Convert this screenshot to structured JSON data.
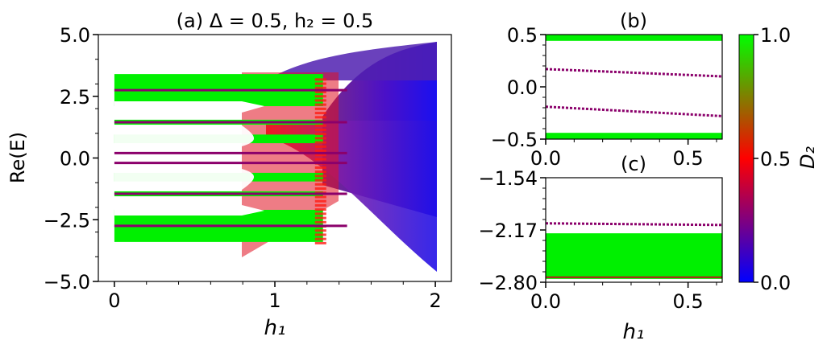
{
  "chart_data": [
    {
      "panel": "a",
      "type": "scatter",
      "title": "(a) Δ = 0.5, h₂ = 0.5",
      "xlabel": "h₁",
      "ylabel": "Re(E)",
      "xlim": [
        -0.1,
        2.1
      ],
      "ylim": [
        -5.0,
        5.0
      ],
      "xticks": [
        0,
        1,
        2
      ],
      "xtick_labels": [
        "0",
        "1",
        "2"
      ],
      "yticks": [
        5.0,
        2.5,
        0.0,
        -2.5,
        -5.0
      ],
      "ytick_labels": [
        "5.0",
        "2.5",
        "0.0",
        "−2.5",
        "−5.0"
      ],
      "green_bands": [
        [
          2.1,
          3.4
        ],
        [
          1.35,
          1.55
        ],
        [
          0.6,
          0.95
        ],
        [
          -0.95,
          -0.6
        ],
        [
          -1.55,
          -1.35
        ],
        [
          -3.4,
          -2.1
        ]
      ],
      "purple_levels": [
        0.2,
        -0.2,
        1.45,
        -1.45,
        2.75,
        -2.75
      ],
      "colormap_note": "color encodes D2 (green = extended, red = critical, blue = localized)"
    },
    {
      "panel": "b",
      "type": "scatter",
      "title": "(b)",
      "xlim": [
        0.0,
        0.62
      ],
      "ylim": [
        -0.5,
        0.5
      ],
      "xticks": [
        0.0,
        0.5
      ],
      "xtick_labels": [
        "0.0",
        "0.5"
      ],
      "yticks": [
        0.5,
        0.0,
        -0.5
      ],
      "ytick_labels": [
        "0.5",
        "0.0",
        "−0.5"
      ],
      "series": [
        {
          "color": "#8b006b",
          "x": [
            0.0,
            0.62
          ],
          "y": [
            0.17,
            0.1
          ]
        },
        {
          "color": "#8b006b",
          "x": [
            0.0,
            0.62
          ],
          "y": [
            -0.19,
            -0.28
          ]
        }
      ],
      "green_bands": [
        [
          0.44,
          0.5
        ],
        [
          -0.5,
          -0.44
        ]
      ]
    },
    {
      "panel": "c",
      "type": "scatter",
      "title": "(c)",
      "xlabel": "h₁",
      "xlim": [
        0.0,
        0.62
      ],
      "ylim": [
        -2.8,
        -1.54
      ],
      "xticks": [
        0.0,
        0.5
      ],
      "xtick_labels": [
        "0.0",
        "0.5"
      ],
      "yticks": [
        -1.54,
        -2.17,
        -2.8
      ],
      "ytick_labels": [
        "−1.54",
        "−2.17",
        "−2.80"
      ],
      "series": [
        {
          "color": "#8b006b",
          "x": [
            0.0,
            0.62
          ],
          "y": [
            -2.09,
            -2.11
          ]
        }
      ],
      "green_bands": [
        [
          -2.76,
          -2.21
        ]
      ]
    },
    {
      "type": "colorbar",
      "label": "D₂",
      "range": [
        0.0,
        1.0
      ],
      "ticks": [
        1.0,
        0.5,
        0.0
      ],
      "tick_labels": [
        "1.0",
        "0.5",
        "0.0"
      ],
      "colors": [
        "#0000ff",
        "#ff0000",
        "#00ff00"
      ]
    }
  ]
}
